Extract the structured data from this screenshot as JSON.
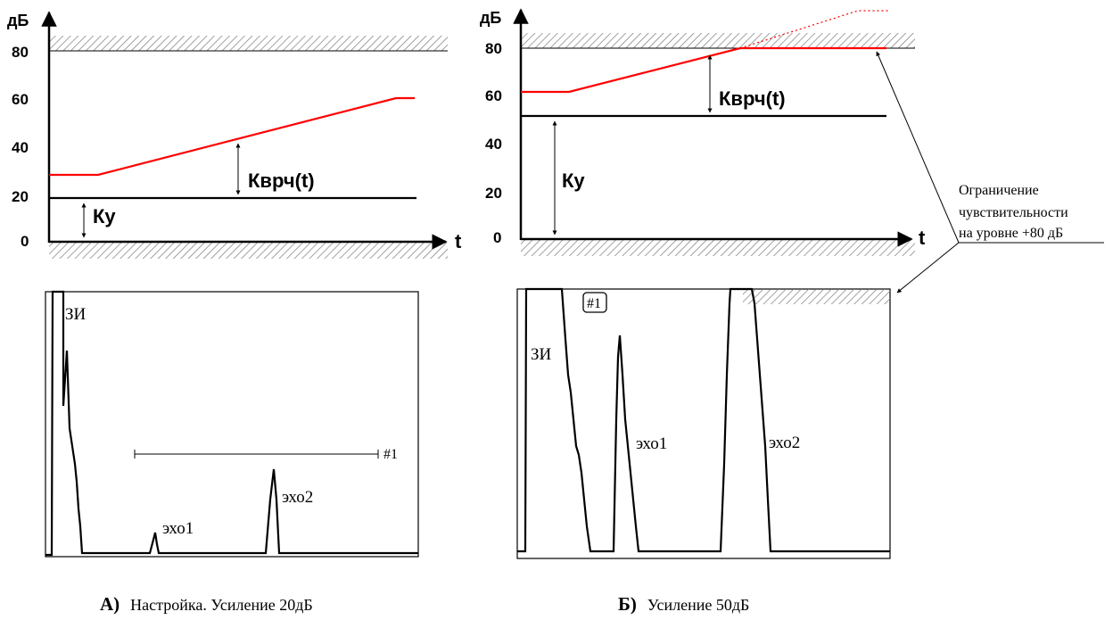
{
  "colors": {
    "ink": "#000000",
    "tvg": "#ff0000",
    "hatch": "#888888"
  },
  "panel_a": {
    "y_unit": "дБ",
    "x_unit": "t",
    "ticks": [
      "80",
      "60",
      "40",
      "20",
      "0"
    ],
    "tvg_label": "Кврч(t)",
    "gain_label": "Ку",
    "screen": {
      "zi_label": "ЗИ",
      "echo1_label": "эхо1",
      "echo2_label": "эхо2",
      "gate_label": "#1"
    },
    "caption_letter": "А)",
    "caption_text": "Настройка. Усиление 20дБ"
  },
  "panel_b": {
    "y_unit": "дБ",
    "x_unit": "t",
    "ticks": [
      "80",
      "60",
      "40",
      "20",
      "0"
    ],
    "tvg_label": "Кврч(t)",
    "gain_label": "Ку",
    "screen": {
      "zi_label": "ЗИ",
      "echo1_label": "эхо1",
      "echo2_label": "эхо2",
      "gate_label": "#1"
    },
    "caption_letter": "Б)",
    "caption_text": "Усиление 50дБ"
  },
  "annotation": {
    "line1": "Ограничение",
    "line2": "чувствительности",
    "line3": "на уровне +80 дБ"
  }
}
